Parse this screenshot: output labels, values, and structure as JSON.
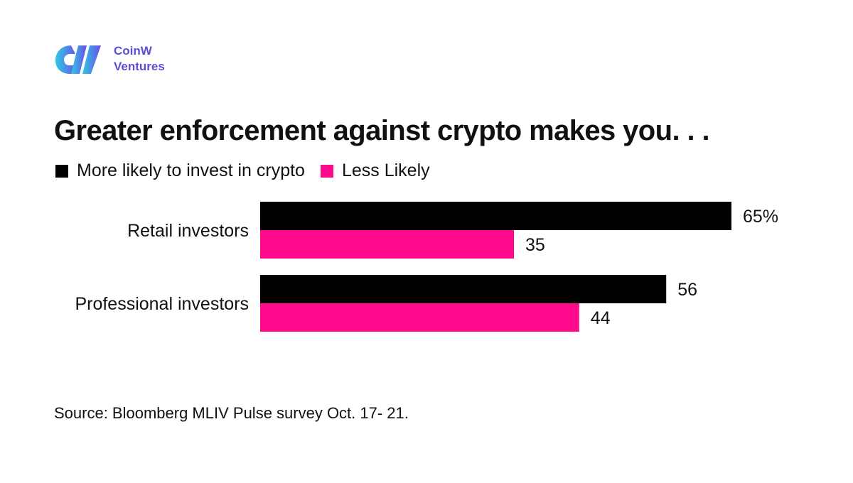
{
  "brand": {
    "name_line1": "CoinW",
    "name_line2": "Ventures",
    "color": "#5b4fd6",
    "gradient_start": "#2ec9e8",
    "gradient_end": "#6a4ce6",
    "icon": "coinw-logo-icon"
  },
  "source": "Source: Bloomberg MLIV Pulse survey Oct. 17- 21.",
  "chart_data": {
    "type": "bar",
    "orientation": "horizontal",
    "title": "Greater enforcement against crypto makes you. . .",
    "categories": [
      "Retail investors",
      "Professional investors"
    ],
    "series": [
      {
        "name": "More likely to invest in crypto",
        "color": "#000000",
        "values": [
          65,
          56
        ],
        "labels": [
          "65%",
          "56"
        ]
      },
      {
        "name": "Less Likely",
        "color": "#ff0a8c",
        "values": [
          35,
          44
        ],
        "labels": [
          "35",
          "44"
        ]
      }
    ],
    "xlim": [
      0,
      100
    ],
    "grid": false,
    "legend": "top-left"
  }
}
